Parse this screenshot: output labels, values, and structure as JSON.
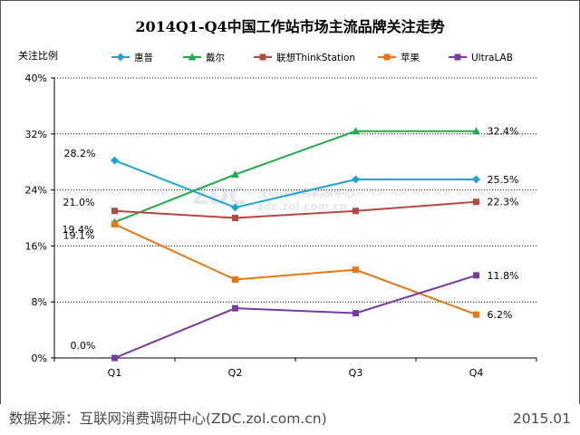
{
  "chart_data": {
    "type": "line",
    "title": "2014Q1-Q4中国工作站市场主流品牌关注走势",
    "ylabel": "关注比例",
    "xlabel": "",
    "categories": [
      "Q1",
      "Q2",
      "Q3",
      "Q4"
    ],
    "ylim": [
      0,
      40
    ],
    "yticks": [
      0,
      8,
      16,
      24,
      32,
      40
    ],
    "ytick_labels": [
      "0%",
      "8%",
      "16%",
      "24%",
      "32%",
      "40%"
    ],
    "grid": true,
    "legend_position": "top",
    "series": [
      {
        "name": "惠普",
        "color": "#1ea3d8",
        "marker": "diamond",
        "values": [
          28.2,
          21.5,
          25.5,
          25.5
        ]
      },
      {
        "name": "戴尔",
        "color": "#1fab4c",
        "marker": "triangle",
        "values": [
          19.4,
          26.2,
          32.4,
          32.4
        ]
      },
      {
        "name": "联想ThinkStation",
        "color": "#b5493f",
        "marker": "square",
        "values": [
          21.0,
          20.0,
          21.0,
          22.3
        ]
      },
      {
        "name": "苹果",
        "color": "#e87613",
        "marker": "square",
        "values": [
          19.1,
          11.2,
          12.6,
          6.2
        ]
      },
      {
        "name": "UltraLAB",
        "color": "#7a3aa0",
        "marker": "square",
        "values": [
          0.0,
          7.1,
          6.4,
          11.8
        ]
      }
    ],
    "data_labels": [
      {
        "series": 0,
        "index": 0,
        "text": "28.2%"
      },
      {
        "series": 0,
        "index": 3,
        "text": "25.5%"
      },
      {
        "series": 1,
        "index": 0,
        "text": "19.4%"
      },
      {
        "series": 1,
        "index": 3,
        "text": "32.4%"
      },
      {
        "series": 2,
        "index": 0,
        "text": "21.0%"
      },
      {
        "series": 2,
        "index": 3,
        "text": "22.3%"
      },
      {
        "series": 3,
        "index": 0,
        "text": "19.1%"
      },
      {
        "series": 3,
        "index": 3,
        "text": "6.2%"
      },
      {
        "series": 4,
        "index": 0,
        "text": "0.0%"
      },
      {
        "series": 4,
        "index": 3,
        "text": "11.8%"
      }
    ]
  },
  "watermark": {
    "main": "ZDC",
    "sub": "互联网消费调研中心",
    "url": "zdc.zol.com.cn"
  },
  "footer": {
    "source": "数据来源：互联网消费调研中心(ZDC.zol.com.cn)",
    "date": "2015.01"
  }
}
